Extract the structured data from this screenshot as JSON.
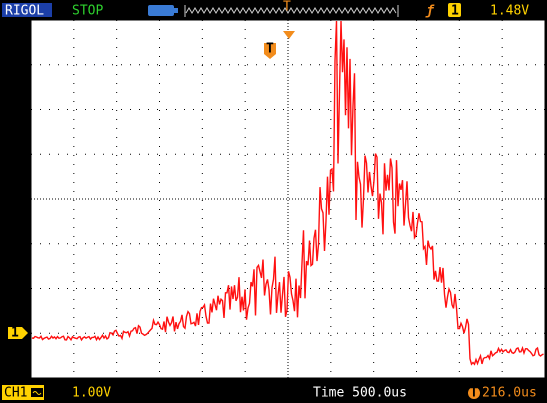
{
  "status_bar": {
    "brand": "RIGOL",
    "run_state": "STOP",
    "trigger_source": "1",
    "trigger_level": "1.48V"
  },
  "screen": {
    "trigger_marker": "T",
    "channel_marker": "1"
  },
  "footer": {
    "channel": "CH1",
    "scale": "1.00V",
    "timebase": "Time 500.0us",
    "trigger_offset": "216.0us"
  }
}
